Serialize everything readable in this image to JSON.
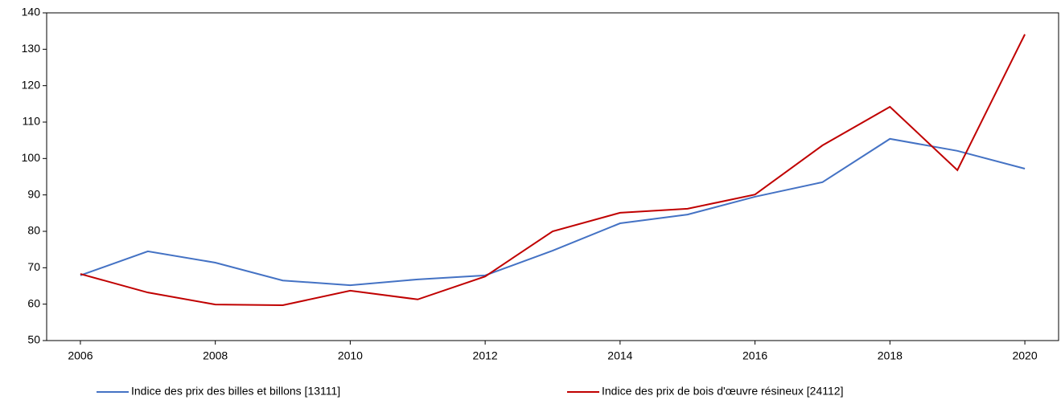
{
  "chart_data": {
    "type": "line",
    "x": [
      2006,
      2007,
      2008,
      2009,
      2010,
      2011,
      2012,
      2013,
      2014,
      2015,
      2016,
      2017,
      2018,
      2019,
      2020
    ],
    "series": [
      {
        "name": "Indice des prix des billes et billons [13111]",
        "color": "#4472c4",
        "values": [
          67.9,
          74.5,
          71.4,
          66.5,
          65.2,
          66.8,
          67.9,
          74.7,
          82.2,
          84.6,
          89.5,
          93.5,
          105.4,
          102.1,
          97.2
        ]
      },
      {
        "name": "Indice des prix de bois d'œuvre résineux [24112]",
        "color": "#c00000",
        "values": [
          68.3,
          63.2,
          59.9,
          59.7,
          63.7,
          61.3,
          67.6,
          80,
          85.1,
          86.2,
          90.1,
          103.6,
          114.2,
          96.8,
          134.1
        ]
      }
    ],
    "xlim": [
      2005.5,
      2020.5
    ],
    "xticks": [
      2006,
      2008,
      2010,
      2012,
      2014,
      2016,
      2018,
      2020
    ],
    "ylim": [
      50,
      140
    ],
    "yticks": [
      50,
      60,
      70,
      80,
      90,
      100,
      110,
      120,
      130,
      140
    ],
    "legend": "bottom"
  }
}
